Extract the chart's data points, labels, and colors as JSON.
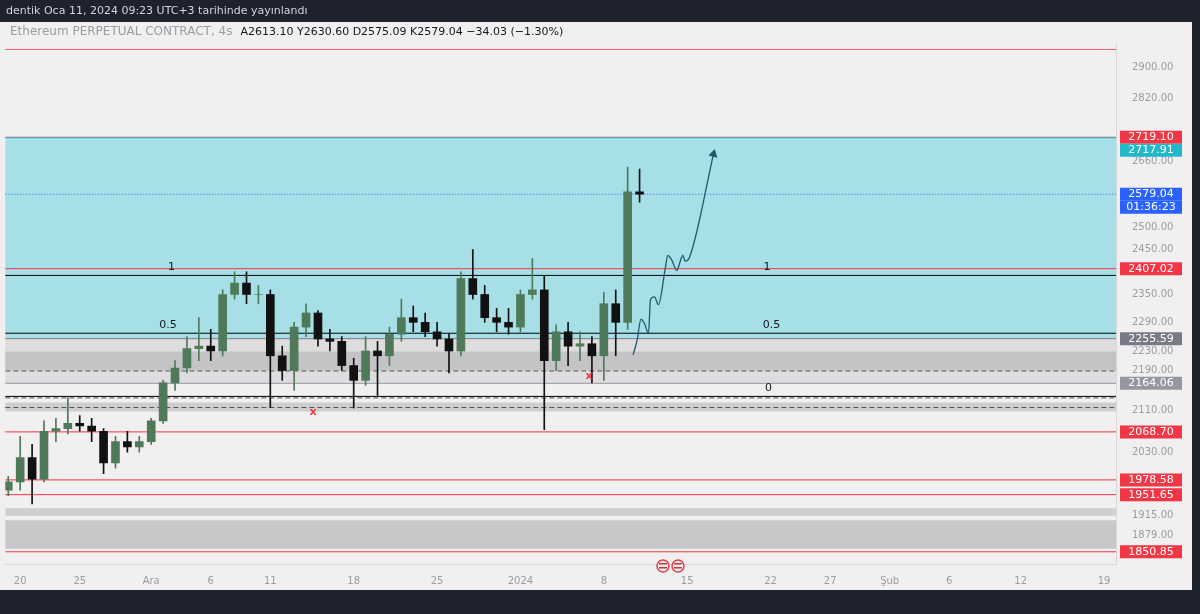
{
  "chart_data": {
    "type": "candlestick",
    "title": "dentik Oca 11, 2024 09:23 UTC+3 tarihinde yayınlandı",
    "subtitle": "Ethereum PERPETUAL CONTRACT, 4s",
    "x": [
      "2023-11-19",
      "2023-11-20",
      "2023-11-21",
      "2023-11-22",
      "2023-11-23",
      "2023-11-24",
      "2023-11-25",
      "2023-11-26",
      "2023-11-27",
      "2023-11-28",
      "2023-11-29",
      "2023-11-30",
      "2023-12-01",
      "2023-12-02",
      "2023-12-03",
      "2023-12-04",
      "2023-12-05",
      "2023-12-06",
      "2023-12-07",
      "2023-12-08",
      "2023-12-09",
      "2023-12-10",
      "2023-12-11",
      "2023-12-12",
      "2023-12-13",
      "2023-12-14",
      "2023-12-15",
      "2023-12-16",
      "2023-12-17",
      "2023-12-18",
      "2023-12-19",
      "2023-12-20",
      "2023-12-21",
      "2023-12-22",
      "2023-12-23",
      "2023-12-24",
      "2023-12-25",
      "2023-12-26",
      "2023-12-27",
      "2023-12-28",
      "2023-12-29",
      "2023-12-30",
      "2023-12-31",
      "2024-01-01",
      "2024-01-02",
      "2024-01-03",
      "2024-01-04",
      "2024-01-05",
      "2024-01-06",
      "2024-01-07",
      "2024-01-08",
      "2024-01-09",
      "2024-01-10",
      "2024-01-11"
    ],
    "ohlc": [
      [
        1960,
        1985,
        1950,
        1975
      ],
      [
        1975,
        2060,
        1960,
        2020
      ],
      [
        2020,
        2045,
        1935,
        1980
      ],
      [
        1980,
        2090,
        1975,
        2070
      ],
      [
        2070,
        2095,
        2050,
        2075
      ],
      [
        2075,
        2135,
        2065,
        2085
      ],
      [
        2085,
        2100,
        2070,
        2080
      ],
      [
        2080,
        2095,
        2050,
        2070
      ],
      [
        2070,
        2075,
        1990,
        2010
      ],
      [
        2010,
        2060,
        2000,
        2050
      ],
      [
        2050,
        2070,
        2030,
        2040
      ],
      [
        2040,
        2060,
        2030,
        2050
      ],
      [
        2050,
        2095,
        2045,
        2090
      ],
      [
        2090,
        2170,
        2085,
        2165
      ],
      [
        2165,
        2210,
        2150,
        2195
      ],
      [
        2195,
        2260,
        2185,
        2235
      ],
      [
        2235,
        2300,
        2210,
        2240
      ],
      [
        2240,
        2275,
        2210,
        2230
      ],
      [
        2230,
        2360,
        2220,
        2350
      ],
      [
        2350,
        2400,
        2340,
        2375
      ],
      [
        2375,
        2400,
        2330,
        2350
      ],
      [
        2350,
        2370,
        2330,
        2350
      ],
      [
        2350,
        2360,
        2116,
        2220
      ],
      [
        2220,
        2240,
        2170,
        2190
      ],
      [
        2190,
        2290,
        2150,
        2280
      ],
      [
        2280,
        2330,
        2260,
        2310
      ],
      [
        2310,
        2315,
        2240,
        2255
      ],
      [
        2255,
        2275,
        2230,
        2250
      ],
      [
        2250,
        2260,
        2190,
        2200
      ],
      [
        2200,
        2215,
        2115,
        2170
      ],
      [
        2170,
        2260,
        2160,
        2230
      ],
      [
        2230,
        2250,
        2140,
        2220
      ],
      [
        2220,
        2280,
        2200,
        2265
      ],
      [
        2265,
        2340,
        2250,
        2300
      ],
      [
        2300,
        2325,
        2270,
        2290
      ],
      [
        2290,
        2310,
        2260,
        2270
      ],
      [
        2270,
        2290,
        2240,
        2255
      ],
      [
        2255,
        2265,
        2185,
        2230
      ],
      [
        2230,
        2400,
        2220,
        2385
      ],
      [
        2385,
        2450,
        2340,
        2350
      ],
      [
        2350,
        2370,
        2290,
        2300
      ],
      [
        2300,
        2320,
        2270,
        2290
      ],
      [
        2290,
        2320,
        2265,
        2280
      ],
      [
        2280,
        2360,
        2270,
        2350
      ],
      [
        2350,
        2430,
        2340,
        2360
      ],
      [
        2360,
        2390,
        2073,
        2210
      ],
      [
        2210,
        2285,
        2190,
        2270
      ],
      [
        2270,
        2290,
        2200,
        2240
      ],
      [
        2240,
        2270,
        2210,
        2245
      ],
      [
        2245,
        2260,
        2165,
        2220
      ],
      [
        2220,
        2355,
        2170,
        2330
      ],
      [
        2330,
        2360,
        2220,
        2290
      ],
      [
        2290,
        2645,
        2275,
        2585
      ],
      [
        2585,
        2640,
        2560,
        2579.04
      ]
    ],
    "series": [
      {
        "type": "line",
        "color": "#1f5a6a",
        "x": [
          "2024-01-10T11:00",
          "2024-01-10T19:00",
          "2024-01-11T03:00",
          "2024-01-11T10:00",
          "2024-01-11T18:00",
          "2024-01-11T22:00",
          "2024-01-12T06:00",
          "2024-01-12T14:00",
          "2024-01-13T04:00",
          "2024-01-13T09:00",
          "2024-01-13T17:00",
          "2024-01-14T03:00",
          "2024-01-14T09:00",
          "2024-01-14T15:00",
          "2024-01-14T20:00",
          "2024-01-15T04:00",
          "2024-01-17T05:00"
        ],
        "values": [
          2222,
          2252,
          2297,
          2287,
          2267,
          2339,
          2345,
          2328,
          2409,
          2437,
          2426,
          2403,
          2420,
          2437,
          2424,
          2431,
          2677
        ]
      }
    ],
    "log": "y",
    "xlim": [
      "2023-11-18T18:00",
      "2024-02-20"
    ],
    "xticks": [
      {
        "value": "2023-11-20",
        "label": "20"
      },
      {
        "value": "2023-11-25",
        "label": "25"
      },
      {
        "value": "2023-12-01",
        "label": "Ara"
      },
      {
        "value": "2023-12-06",
        "label": "6"
      },
      {
        "value": "2023-12-11",
        "label": "11"
      },
      {
        "value": "2023-12-18",
        "label": "18"
      },
      {
        "value": "2023-12-25",
        "label": "25"
      },
      {
        "value": "2024-01-01",
        "label": "2024"
      },
      {
        "value": "2024-01-08",
        "label": "8"
      },
      {
        "value": "2024-01-15",
        "label": "15"
      },
      {
        "value": "2024-01-22",
        "label": "22"
      },
      {
        "value": "2024-01-27",
        "label": "27"
      },
      {
        "value": "2024-02-01",
        "label": "Şub"
      },
      {
        "value": "2024-02-06",
        "label": "6"
      },
      {
        "value": "2024-02-12",
        "label": "12"
      },
      {
        "value": "2024-02-19",
        "label": "19"
      }
    ],
    "ylim": [
      1830,
      2965
    ],
    "yticks": [
      {
        "value": 1879,
        "label": "1879.00"
      },
      {
        "value": 1915,
        "label": "1915.00"
      },
      {
        "value": 2030,
        "label": "2030.00"
      },
      {
        "value": 2110,
        "label": "2110.00"
      },
      {
        "value": 2190,
        "label": "2190.00"
      },
      {
        "value": 2230,
        "label": "2230.00"
      },
      {
        "value": 2290,
        "label": "2290.00"
      },
      {
        "value": 2350,
        "label": "2350.00"
      },
      {
        "value": 2450,
        "label": "2450.00"
      },
      {
        "value": 2500,
        "label": "2500.00"
      },
      {
        "value": 2660,
        "label": "2660.00"
      },
      {
        "value": 2820,
        "label": "2820.00"
      },
      {
        "value": 2900,
        "label": "2900.00"
      }
    ],
    "bands": [
      {
        "axis": "y",
        "from": 2255.59,
        "to": 2717.91,
        "color": "#a6dfe6"
      },
      {
        "axis": "y",
        "from": 2164.06,
        "to": 2255.59,
        "color": "#dedcde"
      },
      {
        "axis": "y",
        "from": 2190,
        "to": 2229,
        "color": "#c4c4c7"
      },
      {
        "axis": "y",
        "from": 2108,
        "to": 2126,
        "color": "#cfcfd1"
      },
      {
        "axis": "y",
        "from": 1914,
        "to": 1927,
        "color": "#cfcfd1"
      },
      {
        "axis": "y",
        "from": 1856,
        "to": 1906,
        "color": "#c8c8ca"
      }
    ],
    "ref_lines": [
      {
        "axis": "y",
        "value": 2950,
        "color": "#f0606a"
      },
      {
        "axis": "y",
        "value": 2719.1,
        "label": "2719.10",
        "color": "#f23645"
      },
      {
        "axis": "y",
        "value": 2717.91,
        "label": "2717.91",
        "color": "#22b8c8"
      },
      {
        "axis": "y",
        "value": 2579.04,
        "label": "2579.04",
        "color": "#2962ff",
        "line_style": "dotted"
      },
      {
        "axis": "y",
        "value": 2407.02,
        "label": "2407.02",
        "color": "#f23645"
      },
      {
        "axis": "y",
        "value": 2392,
        "color": "#000000"
      },
      {
        "axis": "y",
        "value": 2267,
        "color": "#000000"
      },
      {
        "axis": "y",
        "value": 2255.59,
        "label": "2255.59",
        "color": "#787b86"
      },
      {
        "axis": "y",
        "value": 2189,
        "color": "#555555",
        "line_style": "dashed"
      },
      {
        "axis": "y",
        "value": 2164.06,
        "label": "2164.06",
        "color": "#9598a1"
      },
      {
        "axis": "y",
        "value": 2138,
        "color": "#000000"
      },
      {
        "axis": "y",
        "value": 2135,
        "color": "#555555",
        "line_style": "dashed"
      },
      {
        "axis": "y",
        "value": 2116,
        "color": "#555555",
        "line_style": "dashed"
      },
      {
        "axis": "y",
        "value": 2068.7,
        "label": "2068.70",
        "color": "#f23645"
      },
      {
        "axis": "y",
        "value": 1978.58,
        "label": "1978.58",
        "color": "#f23645"
      },
      {
        "axis": "y",
        "value": 1951.65,
        "label": "1951.65",
        "color": "#f23645"
      },
      {
        "axis": "y",
        "value": 1850.85,
        "label": "1850.85",
        "color": "#f23645"
      }
    ],
    "annotations": [
      "A2613.10 Y2630.60 D2575.09 K2579.04 −34.03 (−1.30%)",
      "01:36:23",
      {
        "text": "x",
        "x": "2023-12-14T14:00",
        "y": 2106
      },
      {
        "text": "x",
        "x": "2024-01-06T18:00",
        "y": 2178
      },
      {
        "text": "1",
        "x": "2023-12-02T17:00",
        "y": 2392
      },
      {
        "text": "0.5",
        "x": "2023-12-02T10:00",
        "y": 2267
      },
      {
        "text": "1",
        "x": "2024-01-21T17:00",
        "y": 2392
      },
      {
        "text": "0.5",
        "x": "2024-01-22T02:00",
        "y": 2267
      },
      {
        "text": "0",
        "x": "2024-01-21T20:00",
        "y": 2138
      }
    ]
  }
}
